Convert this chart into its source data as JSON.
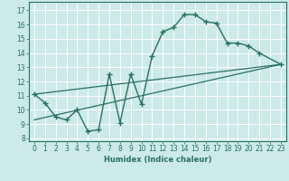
{
  "xlabel": "Humidex (Indice chaleur)",
  "bg_color": "#cceae8",
  "grid_color": "#ffffff",
  "line_color": "#2a7060",
  "xlim": [
    -0.5,
    23.5
  ],
  "ylim": [
    7.8,
    17.6
  ],
  "xticks": [
    0,
    1,
    2,
    3,
    4,
    5,
    6,
    7,
    8,
    9,
    10,
    11,
    12,
    13,
    14,
    15,
    16,
    17,
    18,
    19,
    20,
    21,
    22,
    23
  ],
  "yticks": [
    8,
    9,
    10,
    11,
    12,
    13,
    14,
    15,
    16,
    17
  ],
  "line1_x": [
    0,
    1,
    2,
    3,
    4,
    5,
    6,
    7,
    8,
    9,
    10,
    11,
    12,
    13,
    14,
    15,
    16,
    17,
    18,
    19,
    20,
    21,
    23
  ],
  "line1_y": [
    11.1,
    10.5,
    9.5,
    9.3,
    10.0,
    8.5,
    8.6,
    12.5,
    9.1,
    12.5,
    10.4,
    13.8,
    15.5,
    15.8,
    16.7,
    16.7,
    16.2,
    16.1,
    14.7,
    14.7,
    14.5,
    14.0,
    13.2
  ],
  "line2_x": [
    0,
    23
  ],
  "line2_y": [
    9.3,
    13.2
  ],
  "line3_x": [
    0,
    23
  ],
  "line3_y": [
    11.1,
    13.2
  ],
  "xlabel_fontsize": 6.0,
  "tick_fontsize": 5.5
}
